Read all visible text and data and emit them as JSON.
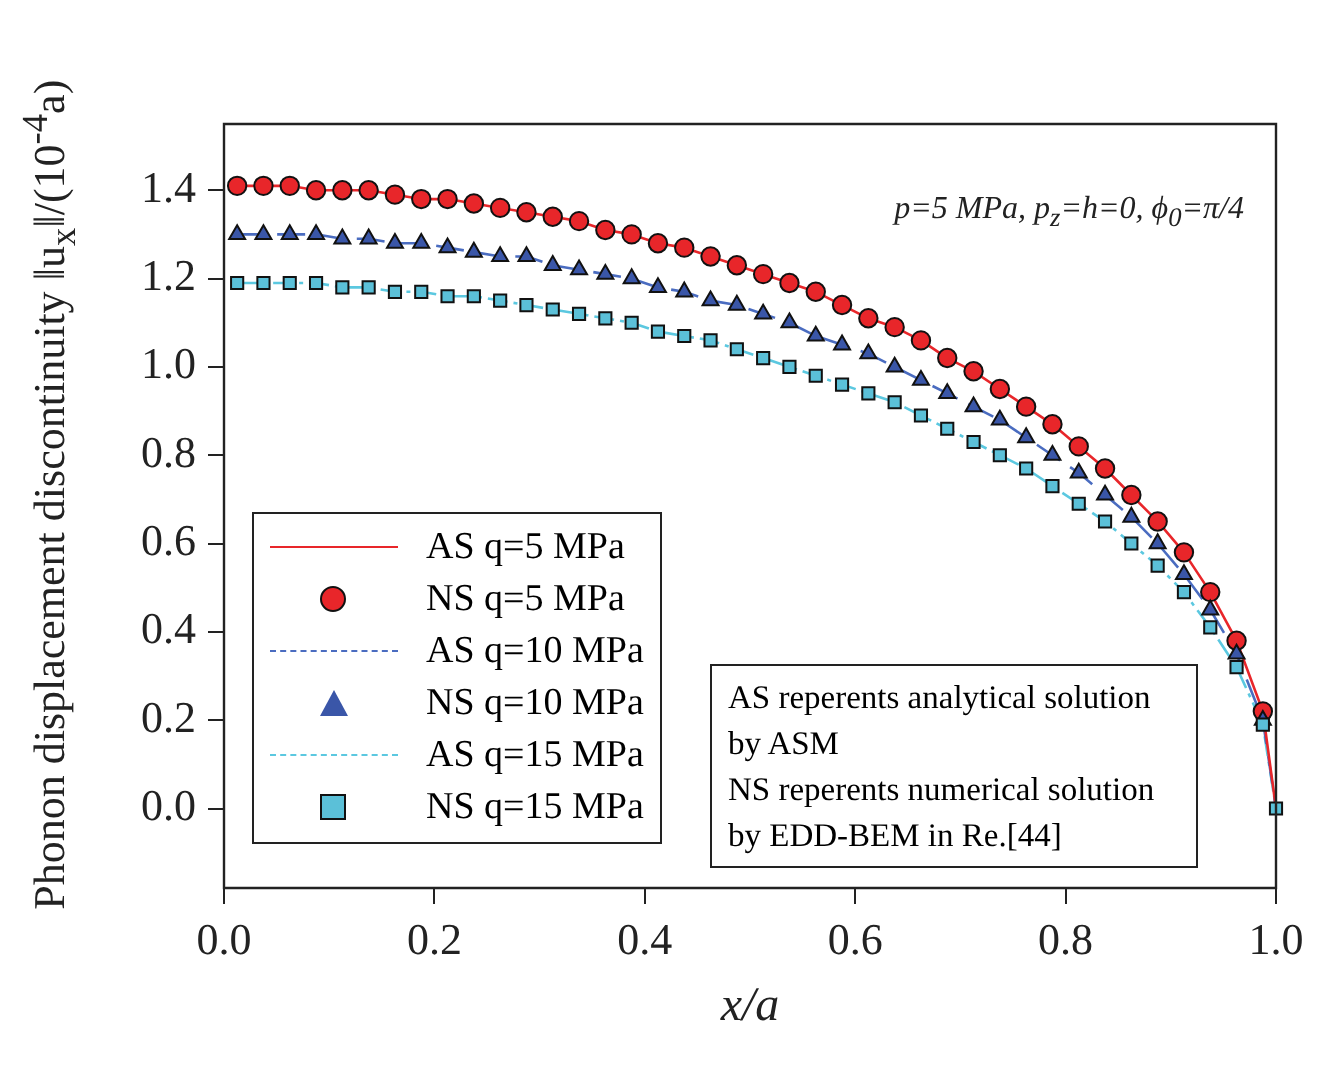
{
  "chart_data": {
    "type": "scatter",
    "xlabel": "x/a",
    "ylabel": "Phonon displacement discontinuity ‖u$_{x}$‖/(10$^{-4}$a)",
    "x": [
      0.0125,
      0.0375,
      0.0625,
      0.0875,
      0.1125,
      0.1375,
      0.1625,
      0.1875,
      0.2125,
      0.2375,
      0.2625,
      0.2875,
      0.3125,
      0.3375,
      0.3625,
      0.3875,
      0.4125,
      0.4375,
      0.4625,
      0.4875,
      0.5125,
      0.5375,
      0.5625,
      0.5875,
      0.6125,
      0.6375,
      0.6625,
      0.6875,
      0.7125,
      0.7375,
      0.7625,
      0.7875,
      0.8125,
      0.8375,
      0.8625,
      0.8875,
      0.9125,
      0.9375,
      0.9625,
      0.9875,
      1.0
    ],
    "series": [
      {
        "name": "AS q=5 MPa",
        "type": "line",
        "color": "#e8262a",
        "line_style": "solid",
        "marker": "none",
        "values": [
          1.41,
          1.41,
          1.41,
          1.4,
          1.4,
          1.4,
          1.39,
          1.38,
          1.38,
          1.37,
          1.36,
          1.35,
          1.34,
          1.33,
          1.31,
          1.3,
          1.28,
          1.27,
          1.25,
          1.23,
          1.21,
          1.19,
          1.17,
          1.14,
          1.11,
          1.09,
          1.06,
          1.02,
          0.99,
          0.95,
          0.91,
          0.87,
          0.82,
          0.77,
          0.71,
          0.65,
          0.58,
          0.49,
          0.38,
          0.22,
          0
        ]
      },
      {
        "name": "NS q=5 MPa",
        "color": "#e8262a",
        "marker": "circle",
        "values": [
          1.41,
          1.41,
          1.41,
          1.4,
          1.4,
          1.4,
          1.39,
          1.38,
          1.38,
          1.37,
          1.36,
          1.35,
          1.34,
          1.33,
          1.31,
          1.3,
          1.28,
          1.27,
          1.25,
          1.23,
          1.21,
          1.19,
          1.17,
          1.14,
          1.11,
          1.09,
          1.06,
          1.02,
          0.99,
          0.95,
          0.91,
          0.87,
          0.82,
          0.77,
          0.71,
          0.65,
          0.58,
          0.49,
          0.38,
          0.22,
          null
        ]
      },
      {
        "name": "AS q=10 MPa",
        "type": "line",
        "color": "#4a6cc0",
        "line_style": "dashed",
        "marker": "none",
        "values": [
          1.3,
          1.3,
          1.3,
          1.3,
          1.29,
          1.29,
          1.28,
          1.28,
          1.27,
          1.26,
          1.25,
          1.25,
          1.23,
          1.22,
          1.21,
          1.2,
          1.18,
          1.17,
          1.15,
          1.14,
          1.12,
          1.1,
          1.07,
          1.05,
          1.03,
          1.0,
          0.97,
          0.94,
          0.91,
          0.88,
          0.84,
          0.8,
          0.76,
          0.71,
          0.66,
          0.6,
          0.53,
          0.45,
          0.35,
          0.2,
          0
        ]
      },
      {
        "name": "NS q=10 MPa",
        "color": "#3a56a8",
        "marker": "triangle",
        "values": [
          1.3,
          1.3,
          1.3,
          1.3,
          1.29,
          1.29,
          1.28,
          1.28,
          1.27,
          1.26,
          1.25,
          1.25,
          1.23,
          1.22,
          1.21,
          1.2,
          1.18,
          1.17,
          1.15,
          1.14,
          1.12,
          1.1,
          1.07,
          1.05,
          1.03,
          1.0,
          0.97,
          0.94,
          0.91,
          0.88,
          0.84,
          0.8,
          0.76,
          0.71,
          0.66,
          0.6,
          0.53,
          0.45,
          0.35,
          0.2,
          null
        ]
      },
      {
        "name": "AS q=15 MPa",
        "type": "line",
        "color": "#5bc8e0",
        "line_style": "dashdot",
        "marker": "none",
        "values": [
          1.19,
          1.19,
          1.19,
          1.19,
          1.18,
          1.18,
          1.17,
          1.17,
          1.16,
          1.16,
          1.15,
          1.14,
          1.13,
          1.12,
          1.11,
          1.1,
          1.08,
          1.07,
          1.06,
          1.04,
          1.02,
          1.0,
          0.98,
          0.96,
          0.94,
          0.92,
          0.89,
          0.86,
          0.83,
          0.8,
          0.77,
          0.73,
          0.69,
          0.65,
          0.6,
          0.55,
          0.49,
          0.41,
          0.32,
          0.19,
          0
        ]
      },
      {
        "name": "NS q=15 MPa",
        "color": "#5bc0d8",
        "marker": "square",
        "values": [
          1.19,
          1.19,
          1.19,
          1.19,
          1.18,
          1.18,
          1.17,
          1.17,
          1.16,
          1.16,
          1.15,
          1.14,
          1.13,
          1.12,
          1.11,
          1.1,
          1.08,
          1.07,
          1.06,
          1.04,
          1.02,
          1.0,
          0.98,
          0.96,
          0.94,
          0.92,
          0.89,
          0.86,
          0.83,
          0.8,
          0.77,
          0.73,
          0.69,
          0.65,
          0.6,
          0.55,
          0.49,
          0.41,
          0.32,
          0.19,
          0
        ]
      }
    ],
    "xlim": [
      0,
      1
    ],
    "xticks": [
      {
        "value": 0,
        "label": "0.0"
      },
      {
        "value": 0.2,
        "label": "0.2"
      },
      {
        "value": 0.4,
        "label": "0.4"
      },
      {
        "value": 0.6,
        "label": "0.6"
      },
      {
        "value": 0.8,
        "label": "0.8"
      },
      {
        "value": 1,
        "label": "1.0"
      }
    ],
    "ylim": [
      -0.18,
      1.55
    ],
    "yticks": [
      {
        "value": 0,
        "label": "0.0"
      },
      {
        "value": 0.2,
        "label": "0.2"
      },
      {
        "value": 0.4,
        "label": "0.4"
      },
      {
        "value": 0.6,
        "label": "0.6"
      },
      {
        "value": 0.8,
        "label": "0.8"
      },
      {
        "value": 1,
        "label": "1.0"
      },
      {
        "value": 1.2,
        "label": "1.2"
      },
      {
        "value": 1.4,
        "label": "1.4"
      }
    ],
    "grid": false,
    "legend": "bottom left",
    "annotations": [
      "p=5 MPa, p$_{z}$=h=0, ϕ$_{0}$=π/4",
      "AS reperents analytical solution by ASM",
      "NS reperents numerical solution by EDD-BEM in Re.[44]"
    ]
  }
}
